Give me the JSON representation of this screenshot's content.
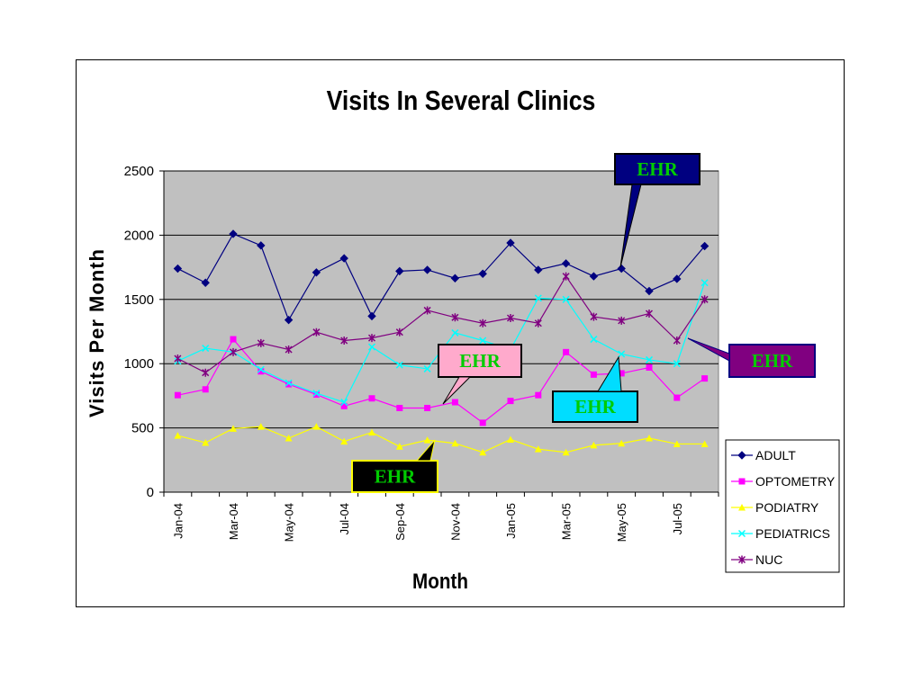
{
  "chart_data": {
    "type": "line",
    "title": "Visits In Several Clinics",
    "xlabel": "Month",
    "ylabel": "Visits Per Month",
    "ylim": [
      0,
      2500
    ],
    "yticks": [
      "0",
      "500",
      "1000",
      "1500",
      "2000",
      "2500"
    ],
    "xtick_labels": [
      "Jan-04",
      "Mar-04",
      "May-04",
      "Jul-04",
      "Sep-04",
      "Nov-04",
      "Jan-05",
      "Mar-05",
      "May-05",
      "Jul-05"
    ],
    "categories": [
      "Jan-04",
      "Feb-04",
      "Mar-04",
      "Apr-04",
      "May-04",
      "Jun-04",
      "Jul-04",
      "Aug-04",
      "Sep-04",
      "Oct-04",
      "Nov-04",
      "Dec-04",
      "Jan-05",
      "Feb-05",
      "Mar-05",
      "Apr-05",
      "May-05",
      "Jun-05",
      "Jul-05",
      "Aug-05"
    ],
    "grid": true,
    "background": "#c0c0c0",
    "legend_position": "right",
    "series": [
      {
        "name": "ADULT",
        "color": "#000080",
        "marker": "diamond",
        "values": [
          1740,
          1630,
          2010,
          1920,
          1340,
          1710,
          1820,
          1370,
          1720,
          1730,
          1665,
          1700,
          1940,
          1730,
          1780,
          1680,
          1740,
          1565,
          1660,
          1915
        ]
      },
      {
        "name": "OPTOMETRY",
        "color": "#ff00ff",
        "marker": "square",
        "values": [
          755,
          800,
          1190,
          940,
          840,
          760,
          670,
          730,
          655,
          655,
          700,
          540,
          710,
          755,
          1090,
          915,
          925,
          970,
          735,
          885
        ]
      },
      {
        "name": "PODIATRY",
        "color": "#ffff00",
        "marker": "triangle",
        "values": [
          440,
          385,
          495,
          510,
          420,
          510,
          395,
          465,
          355,
          405,
          380,
          310,
          410,
          335,
          310,
          365,
          380,
          420,
          375,
          375
        ]
      },
      {
        "name": "PEDIATRICS",
        "color": "#00ffff",
        "marker": "x",
        "values": [
          1020,
          1120,
          1090,
          955,
          850,
          770,
          700,
          1130,
          990,
          960,
          1240,
          1180,
          1110,
          1510,
          1500,
          1190,
          1075,
          1030,
          1000,
          1630
        ]
      },
      {
        "name": "NUC",
        "color": "#800080",
        "marker": "star",
        "values": [
          1040,
          930,
          1090,
          1160,
          1110,
          1245,
          1180,
          1200,
          1245,
          1415,
          1360,
          1315,
          1355,
          1315,
          1680,
          1365,
          1335,
          1390,
          1180,
          1500
        ]
      }
    ],
    "annotations": [
      {
        "label": "EHR",
        "fill": "#000080",
        "border": "#000000",
        "text_color": "#00cc00"
      },
      {
        "label": "EHR",
        "fill": "#ffaacc",
        "border": "#000000",
        "text_color": "#00cc00"
      },
      {
        "label": "EHR",
        "fill": "#00ddff",
        "border": "#000000",
        "text_color": "#00cc00"
      },
      {
        "label": "EHR",
        "fill": "#800080",
        "border": "#000080",
        "text_color": "#00cc00"
      },
      {
        "label": "EHR",
        "fill": "#000000",
        "border": "#ffff00",
        "text_color": "#00cc00"
      }
    ]
  }
}
